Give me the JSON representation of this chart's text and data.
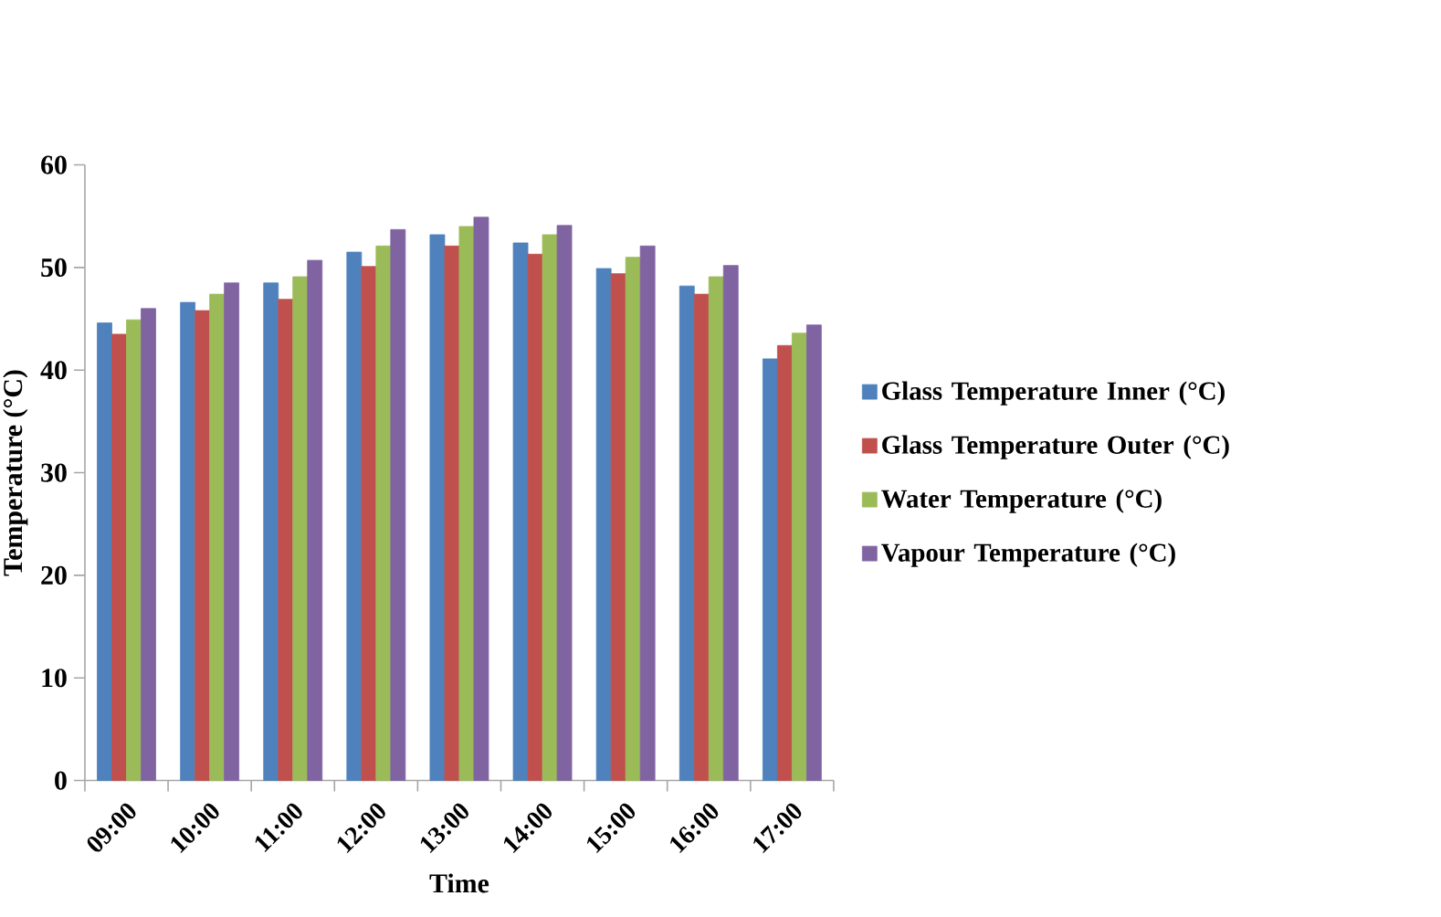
{
  "chart_data": {
    "type": "bar",
    "xlabel": "Time",
    "ylabel": "Temperature (°C)",
    "categories": [
      "09:00",
      "10:00",
      "11:00",
      "12:00",
      "13:00",
      "14:00",
      "15:00",
      "16:00",
      "17:00"
    ],
    "series": [
      {
        "name": "Glass Temperature Inner (°C)",
        "color": "#4f81bd",
        "values": [
          44.6,
          46.6,
          48.5,
          51.5,
          53.2,
          52.4,
          49.9,
          48.2,
          41.1
        ]
      },
      {
        "name": "Glass Temperature Outer (°C)",
        "color": "#c0504d",
        "values": [
          43.5,
          45.8,
          46.9,
          50.1,
          52.1,
          51.3,
          49.4,
          47.4,
          42.4
        ]
      },
      {
        "name": "Water Temperature (°C)",
        "color": "#9bbb59",
        "values": [
          44.9,
          47.4,
          49.1,
          52.1,
          54.0,
          53.2,
          51.0,
          49.1,
          43.6
        ]
      },
      {
        "name": "Vapour Temperature (°C)",
        "color": "#8064a2",
        "values": [
          46.0,
          48.5,
          50.7,
          53.7,
          54.9,
          54.1,
          52.1,
          50.2,
          44.4
        ]
      }
    ],
    "ylim": [
      0,
      60
    ],
    "yticks": [
      0,
      10,
      20,
      30,
      40,
      50,
      60
    ],
    "grid": false,
    "legend": "right"
  }
}
